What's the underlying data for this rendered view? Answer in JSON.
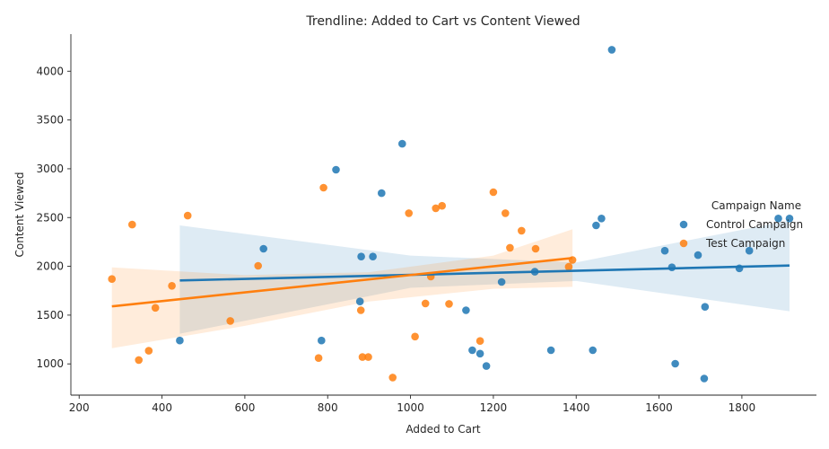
{
  "chart_data": {
    "type": "scatter",
    "title": "Trendline: Added to Cart vs Content Viewed",
    "xlabel": "Added to Cart",
    "ylabel": "Content Viewed",
    "xlim": [
      180,
      1980
    ],
    "ylim": [
      680,
      4380
    ],
    "xticks": [
      200,
      400,
      600,
      800,
      1000,
      1200,
      1400,
      1600,
      1800
    ],
    "yticks": [
      1000,
      1500,
      2000,
      2500,
      3000,
      3500,
      4000
    ],
    "grid": false,
    "legend": {
      "title": "Campaign Name",
      "placement": "right"
    },
    "series": [
      {
        "name": "Control Campaign",
        "color": "#1f77b4",
        "points": [
          [
            1486,
            4220
          ],
          [
            980,
            3256
          ],
          [
            820,
            2990
          ],
          [
            930,
            2750
          ],
          [
            1461,
            2490
          ],
          [
            1448,
            2420
          ],
          [
            1888,
            2490
          ],
          [
            1915,
            2490
          ],
          [
            645,
            2180
          ],
          [
            881,
            2100
          ],
          [
            909,
            2100
          ],
          [
            1614,
            2160
          ],
          [
            1818,
            2160
          ],
          [
            1694,
            2115
          ],
          [
            1631,
            1990
          ],
          [
            1794,
            1980
          ],
          [
            1300,
            1945
          ],
          [
            1220,
            1840
          ],
          [
            878,
            1640
          ],
          [
            1134,
            1550
          ],
          [
            1711,
            1585
          ],
          [
            443,
            1240
          ],
          [
            785,
            1240
          ],
          [
            1339,
            1140
          ],
          [
            1440,
            1140
          ],
          [
            1149,
            1140
          ],
          [
            1168,
            1105
          ],
          [
            1183,
            978
          ],
          [
            1639,
            1002
          ],
          [
            1709,
            850
          ]
        ],
        "trend": {
          "x": [
            443,
            1915
          ],
          "y": [
            1855,
            2008
          ]
        },
        "band": {
          "x": [
            443,
            1000,
            1400,
            1915
          ],
          "upper": [
            2420,
            2110,
            2040,
            2470
          ],
          "lower": [
            1310,
            1780,
            1850,
            1540
          ]
        }
      },
      {
        "name": "Test Campaign",
        "color": "#ff7f0e",
        "points": [
          [
            790,
            2806
          ],
          [
            1200,
            2760
          ],
          [
            1076,
            2620
          ],
          [
            1061,
            2595
          ],
          [
            996,
            2545
          ],
          [
            1229,
            2545
          ],
          [
            462,
            2520
          ],
          [
            328,
            2428
          ],
          [
            1268,
            2365
          ],
          [
            1240,
            2190
          ],
          [
            1302,
            2180
          ],
          [
            1391,
            2065
          ],
          [
            1382,
            1995
          ],
          [
            632,
            2005
          ],
          [
            1049,
            1895
          ],
          [
            279,
            1870
          ],
          [
            424,
            1800
          ],
          [
            1036,
            1620
          ],
          [
            1093,
            1615
          ],
          [
            384,
            1575
          ],
          [
            880,
            1550
          ],
          [
            565,
            1440
          ],
          [
            1011,
            1280
          ],
          [
            1168,
            1235
          ],
          [
            368,
            1135
          ],
          [
            344,
            1040
          ],
          [
            778,
            1060
          ],
          [
            884,
            1070
          ],
          [
            898,
            1070
          ],
          [
            957,
            860
          ]
        ],
        "trend": {
          "x": [
            279,
            1391
          ],
          "y": [
            1590,
            2085
          ]
        },
        "band": {
          "x": [
            279,
            600,
            900,
            1200,
            1391
          ],
          "upper": [
            1990,
            1910,
            1940,
            2110,
            2380
          ],
          "lower": [
            1160,
            1390,
            1640,
            1770,
            1790
          ]
        }
      }
    ]
  }
}
